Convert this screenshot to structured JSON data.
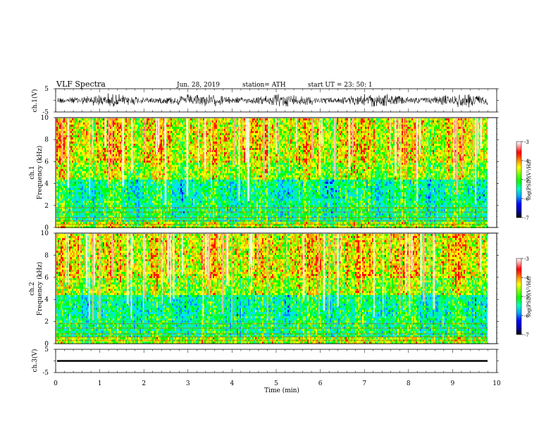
{
  "header": {
    "title": "VLF  Spectra",
    "date": "Jun. 28, 2019",
    "station": "station= ATH",
    "start": "start  UT  =    23: 50: 1"
  },
  "colors": {
    "palette": [
      "#000000",
      "#0000a0",
      "#0000ff",
      "#0080ff",
      "#00d0ff",
      "#00ff80",
      "#00ff00",
      "#80ff00",
      "#ffff00",
      "#ffa000",
      "#ff4000",
      "#ff0000",
      "#ff8080",
      "#ffffff"
    ]
  },
  "chart_data": [
    {
      "type": "line",
      "name": "ch1-waveform",
      "ylabel": "ch.1(V)",
      "ylim": [
        -5,
        5
      ],
      "yticks": [
        "5",
        "-5"
      ],
      "xlim": [
        0,
        10
      ]
    },
    {
      "type": "heatmap",
      "name": "ch1-spectrogram",
      "ylabel_line1": "ch.1",
      "ylabel_line2": "Frequency  (kHz)",
      "ylim": [
        0,
        10
      ],
      "yticks": [
        "0",
        "2",
        "4",
        "6",
        "8",
        "10"
      ],
      "colorbar": {
        "label": "log(PSD)(V²/Hz)",
        "ticks": [
          "-3",
          "-4",
          "-5",
          "-6",
          "-7"
        ],
        "range": [
          -7,
          -3
        ]
      }
    },
    {
      "type": "heatmap",
      "name": "ch2-spectrogram",
      "ylabel_line1": "ch.2",
      "ylabel_line2": "Frequency  (kHz)",
      "ylim": [
        0,
        10
      ],
      "yticks": [
        "0",
        "2",
        "4",
        "6",
        "8",
        "10"
      ],
      "colorbar": {
        "label": "log(PSD)(V²/Hz)",
        "ticks": [
          "-3",
          "-4",
          "-5",
          "-6",
          "-7"
        ],
        "range": [
          -7,
          -3
        ]
      }
    },
    {
      "type": "line",
      "name": "ch3-waveform",
      "ylabel": "ch.3(V)",
      "ylim": [
        -5,
        5
      ],
      "yticks": [
        "5",
        "-5"
      ],
      "xlim": [
        0,
        10
      ],
      "level": 0
    }
  ],
  "xaxis": {
    "label": "Time  (min)",
    "ticks": [
      "0",
      "1",
      "2",
      "3",
      "4",
      "5",
      "6",
      "7",
      "8",
      "9",
      "10"
    ],
    "range": [
      0,
      10
    ]
  }
}
